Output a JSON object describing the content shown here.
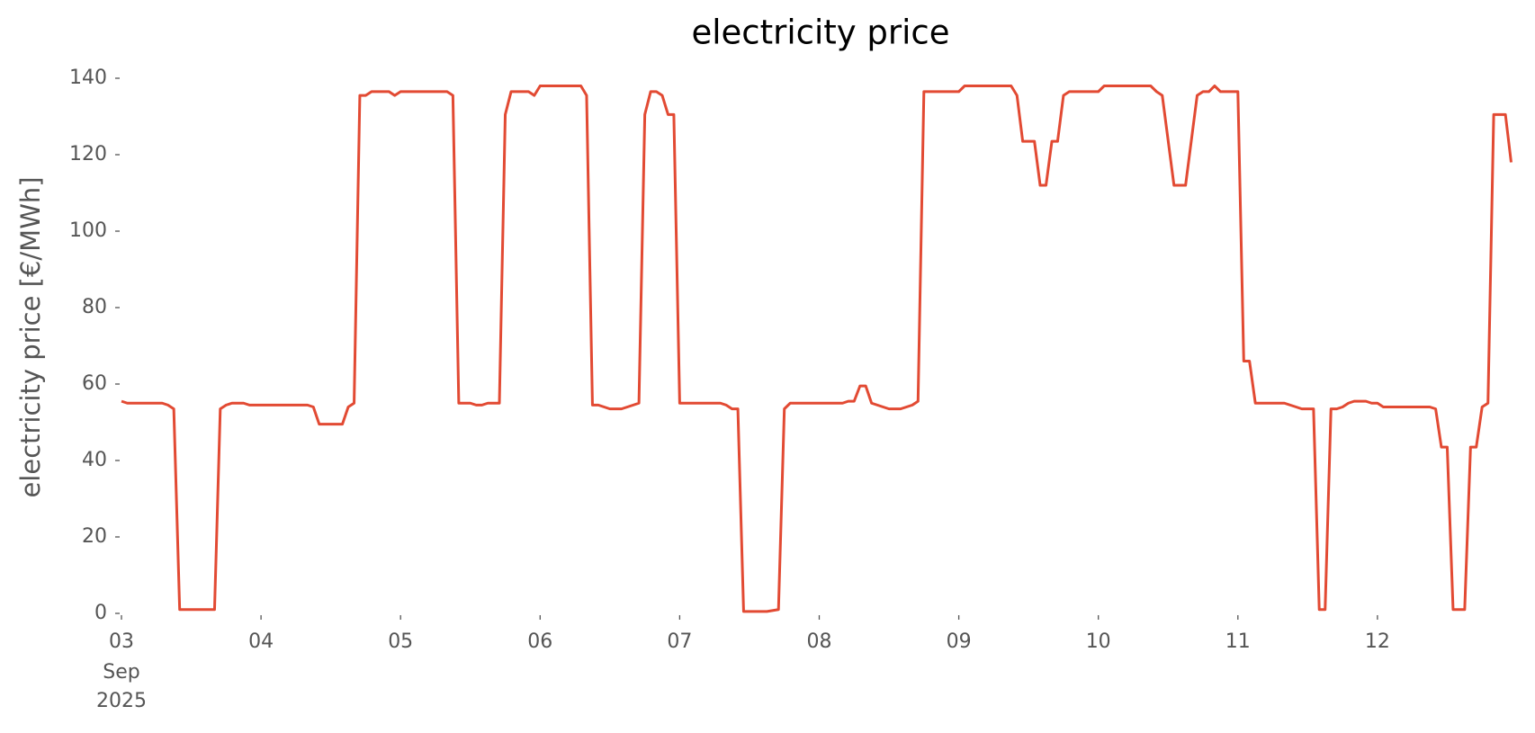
{
  "chart_data": {
    "type": "line",
    "title": "electricity price",
    "ylabel": "electricity price [€/MWh]",
    "x": [
      3,
      3.042,
      3.083,
      3.292,
      3.333,
      3.375,
      3.417,
      3.667,
      3.708,
      3.75,
      3.792,
      3.875,
      3.917,
      4.333,
      4.375,
      4.417,
      4.583,
      4.625,
      4.667,
      4.708,
      4.75,
      4.792,
      4.917,
      4.958,
      5,
      5.333,
      5.375,
      5.417,
      5.5,
      5.542,
      5.583,
      5.625,
      5.708,
      5.75,
      5.792,
      5.917,
      5.958,
      6,
      6.292,
      6.333,
      6.375,
      6.417,
      6.5,
      6.583,
      6.667,
      6.708,
      6.75,
      6.792,
      6.833,
      6.875,
      6.917,
      6.958,
      7,
      7.292,
      7.333,
      7.375,
      7.417,
      7.458,
      7.542,
      7.625,
      7.708,
      7.75,
      7.792,
      8.167,
      8.208,
      8.25,
      8.292,
      8.333,
      8.375,
      8.458,
      8.5,
      8.583,
      8.625,
      8.667,
      8.708,
      8.75,
      9,
      9.042,
      9.375,
      9.417,
      9.458,
      9.542,
      9.583,
      9.625,
      9.667,
      9.708,
      9.75,
      9.792,
      10,
      10.042,
      10.375,
      10.417,
      10.458,
      10.542,
      10.625,
      10.708,
      10.75,
      10.792,
      10.833,
      10.875,
      11,
      11.042,
      11.083,
      11.125,
      11.333,
      11.375,
      11.417,
      11.458,
      11.542,
      11.583,
      11.625,
      11.667,
      11.708,
      11.75,
      11.792,
      11.833,
      11.917,
      11.958,
      12,
      12.042,
      12.375,
      12.417,
      12.458,
      12.5,
      12.542,
      12.625,
      12.667,
      12.708,
      12.75,
      12.792,
      12.833,
      12.917,
      12.958
    ],
    "series": [
      {
        "name": "electricity price",
        "color": "#e24a33",
        "values": [
          55.5,
          55,
          55,
          55,
          54.5,
          53.5,
          1,
          1,
          53.5,
          54.5,
          55,
          55,
          54.5,
          54.5,
          54,
          49.5,
          49.5,
          54,
          55,
          135.5,
          135.5,
          136.5,
          136.5,
          135.5,
          136.5,
          136.5,
          135.5,
          55,
          55,
          54.5,
          54.5,
          55,
          55,
          130.5,
          136.5,
          136.5,
          135.5,
          138,
          138,
          135.5,
          54.5,
          54.5,
          53.5,
          53.5,
          54.5,
          55,
          130.5,
          136.5,
          136.5,
          135.5,
          130.5,
          130.5,
          55,
          55,
          54.5,
          53.5,
          53.5,
          0.5,
          0.5,
          0.5,
          1,
          53.5,
          55,
          55,
          55.5,
          55.5,
          59.5,
          59.5,
          55,
          54,
          53.5,
          53.5,
          54,
          54.5,
          55.5,
          136.5,
          136.5,
          138,
          138,
          135.5,
          123.5,
          123.5,
          112,
          112,
          123.5,
          123.5,
          135.5,
          136.5,
          136.5,
          138,
          138,
          136.5,
          135.5,
          112,
          112,
          135.5,
          136.5,
          136.5,
          138,
          136.5,
          136.5,
          66,
          66,
          55,
          55,
          54.5,
          54,
          53.5,
          53.5,
          1,
          1,
          53.5,
          53.5,
          54,
          55,
          55.5,
          55.5,
          55,
          55,
          54,
          54,
          53.5,
          43.5,
          43.5,
          1,
          1,
          43.5,
          43.5,
          54,
          55,
          130.5,
          130.5,
          118
        ]
      }
    ],
    "xlim": [
      3,
      13
    ],
    "xticks": [
      {
        "value": 3,
        "label": "03"
      },
      {
        "value": 4,
        "label": "04"
      },
      {
        "value": 5,
        "label": "05"
      },
      {
        "value": 6,
        "label": "06"
      },
      {
        "value": 7,
        "label": "07"
      },
      {
        "value": 8,
        "label": "08"
      },
      {
        "value": 9,
        "label": "09"
      },
      10,
      11,
      12
    ],
    "x_date_label": [
      "Sep",
      "2025"
    ],
    "ylim": [
      0,
      140
    ],
    "yticks": [
      0,
      20,
      40,
      60,
      80,
      100,
      120,
      140
    ],
    "grid": false
  }
}
